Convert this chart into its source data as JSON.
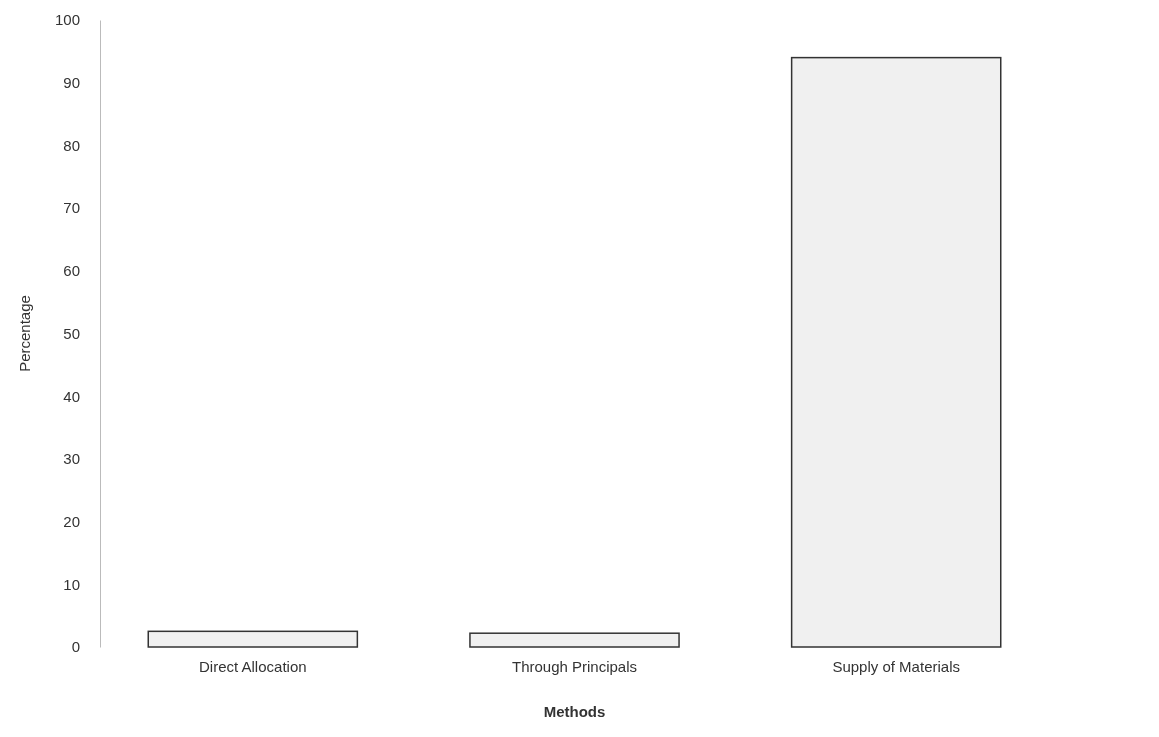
{
  "chart_data": {
    "type": "bar",
    "xlabel": "Methods",
    "ylabel": "Percentage",
    "categories": [
      "Direct Allocation",
      "Through Principals",
      "Supply of Materials"
    ],
    "values": [
      2.5,
      2.2,
      94
    ],
    "color": "#f0f0f0",
    "ylim": [
      0,
      100
    ],
    "yticks": [
      0,
      10,
      20,
      30,
      40,
      50,
      60,
      70,
      80,
      90,
      100
    ],
    "grid": false
  }
}
